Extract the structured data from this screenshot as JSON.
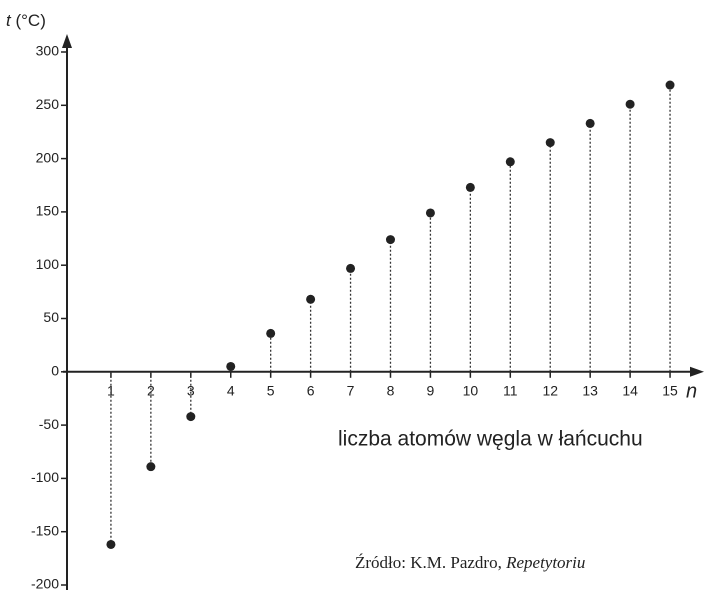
{
  "chart_data": {
    "type": "stem",
    "y_var": "t",
    "y_unit": "(°C)",
    "x_var": "n",
    "xlabel": "liczba atomów węgla w łańcuchu",
    "source": {
      "text": "Źródło: K.M. Pazdro, ",
      "title": "Repetytoriu"
    },
    "x": [
      1,
      2,
      3,
      4,
      5,
      6,
      7,
      8,
      9,
      10,
      11,
      12,
      13,
      14,
      15
    ],
    "values": [
      -162,
      -89,
      -42,
      5,
      36,
      68,
      97,
      124,
      149,
      173,
      197,
      215,
      233,
      251,
      269
    ],
    "color": "#222222",
    "xlim": [
      -0.1,
      15.7
    ],
    "xticks": [
      1,
      2,
      3,
      4,
      5,
      6,
      7,
      8,
      9,
      10,
      11,
      12,
      13,
      14,
      15
    ],
    "ylim": [
      -200,
      300
    ],
    "yticks": [
      -200,
      -150,
      -100,
      -50,
      0,
      50,
      100,
      150,
      200,
      250,
      300
    ]
  }
}
